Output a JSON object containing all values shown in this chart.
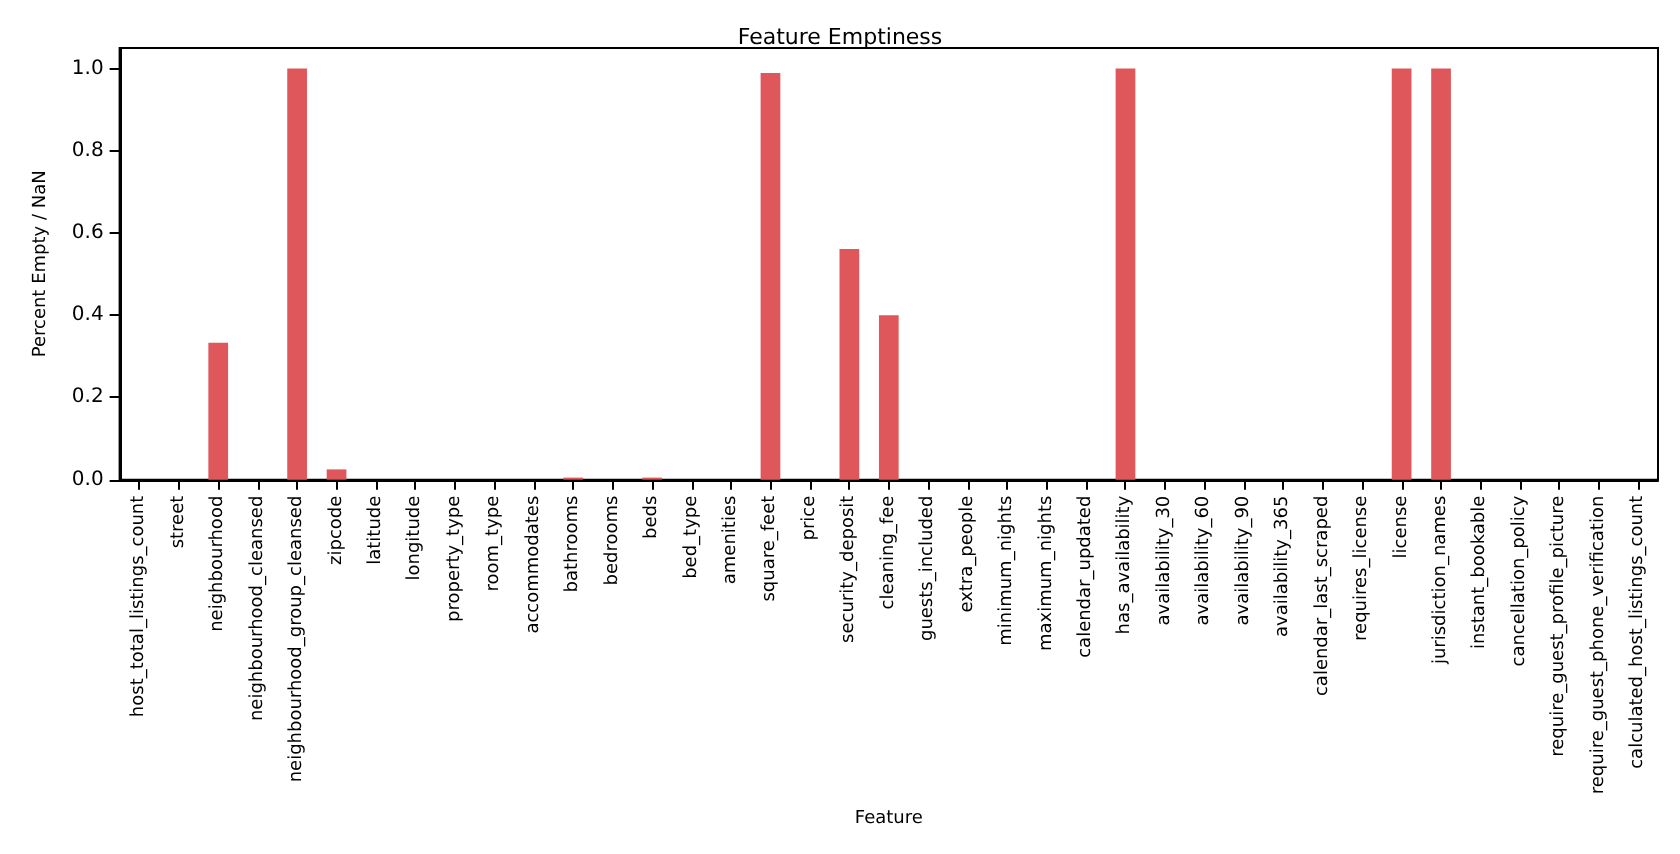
{
  "chart_data": {
    "type": "bar",
    "title": "Feature Emptiness",
    "xlabel": "Feature",
    "ylabel": "Percent Empty / NaN",
    "categories": [
      "host_total_listings_count",
      "street",
      "neighbourhood",
      "neighbourhood_cleansed",
      "neighbourhood_group_cleansed",
      "zipcode",
      "latitude",
      "longitude",
      "property_type",
      "room_type",
      "accommodates",
      "bathrooms",
      "bedrooms",
      "beds",
      "bed_type",
      "amenities",
      "square_feet",
      "price",
      "security_deposit",
      "cleaning_fee",
      "guests_included",
      "extra_people",
      "minimum_nights",
      "maximum_nights",
      "calendar_updated",
      "has_availability",
      "availability_30",
      "availability_60",
      "availability_90",
      "availability_365",
      "calendar_last_scraped",
      "requires_license",
      "license",
      "jurisdiction_names",
      "instant_bookable",
      "cancellation_policy",
      "require_guest_profile_picture",
      "require_guest_phone_verification",
      "calculated_host_listings_count"
    ],
    "values": [
      0,
      0,
      0.333,
      0,
      1.0,
      0.025,
      0,
      0,
      0,
      0,
      0,
      0.005,
      0,
      0.005,
      0,
      0,
      0.989,
      0,
      0.561,
      0.4,
      0,
      0,
      0,
      0,
      0,
      1.0,
      0,
      0,
      0,
      0,
      0,
      0,
      1.0,
      1.0,
      0,
      0,
      0,
      0,
      0
    ],
    "color": "#e0575b",
    "ylim": [
      0,
      1.05
    ],
    "yticks": [
      {
        "value": 0,
        "label": "0.0"
      },
      0.2,
      0.4,
      0.6,
      0.8,
      {
        "value": 1,
        "label": "1.0"
      }
    ],
    "grid": false
  }
}
